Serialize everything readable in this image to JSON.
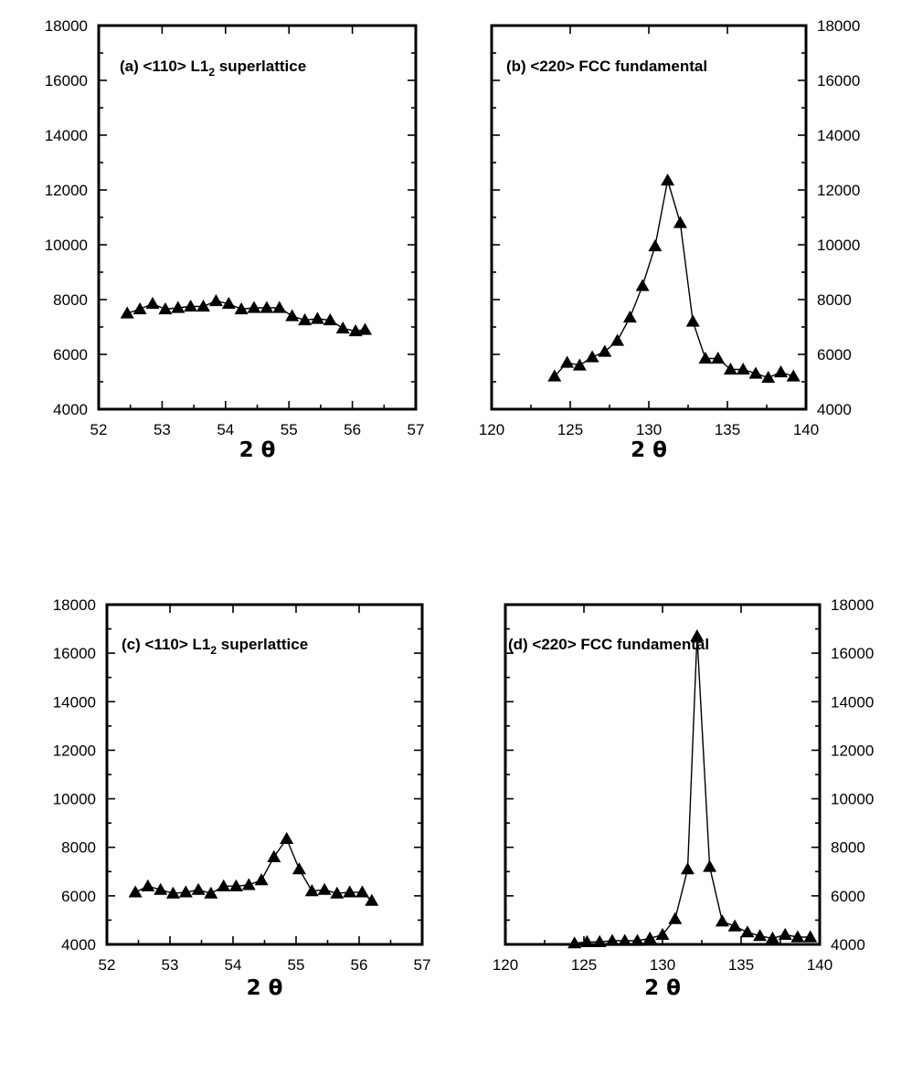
{
  "chart_data": [
    {
      "type": "line",
      "title": "(a) <110> L1",
      "title_subscript": "2",
      "title_suffix": " superlattice",
      "xlabel": "2 θ",
      "ylabel": "",
      "xlim": [
        52,
        57
      ],
      "ylim": [
        4000,
        18000
      ],
      "x_ticks": [
        52,
        53,
        54,
        55,
        56,
        57
      ],
      "y_ticks": [
        4000,
        6000,
        8000,
        10000,
        12000,
        14000,
        16000,
        18000
      ],
      "y_axis_side": "left",
      "marker": "triangle",
      "grid": false,
      "x": [
        52.45,
        52.65,
        52.85,
        53.05,
        53.25,
        53.45,
        53.65,
        53.85,
        54.05,
        54.25,
        54.45,
        54.65,
        54.85,
        55.05,
        55.25,
        55.45,
        55.65,
        55.85,
        56.05,
        56.2
      ],
      "values": [
        7500,
        7650,
        7850,
        7650,
        7700,
        7750,
        7750,
        7950,
        7850,
        7650,
        7700,
        7700,
        7700,
        7400,
        7250,
        7300,
        7250,
        6950,
        6850,
        6900
      ]
    },
    {
      "type": "line",
      "title": "(b) <220> FCC fundamental",
      "xlabel": "2 θ",
      "ylabel": "",
      "xlim": [
        120,
        140
      ],
      "ylim": [
        4000,
        18000
      ],
      "x_ticks": [
        120,
        125,
        130,
        135,
        140
      ],
      "y_ticks": [
        4000,
        6000,
        8000,
        10000,
        12000,
        14000,
        16000,
        18000
      ],
      "y_axis_side": "right",
      "marker": "triangle",
      "grid": false,
      "x": [
        124.0,
        124.8,
        125.6,
        126.4,
        127.2,
        128.0,
        128.8,
        129.6,
        130.4,
        131.2,
        132.0,
        132.8,
        133.6,
        134.4,
        135.2,
        136.0,
        136.8,
        137.6,
        138.4,
        139.2
      ],
      "values": [
        5200,
        5700,
        5600,
        5900,
        6100,
        6500,
        7350,
        8500,
        9950,
        12350,
        10800,
        7200,
        5850,
        5850,
        5450,
        5450,
        5300,
        5150,
        5350,
        5200
      ]
    },
    {
      "type": "line",
      "title": "(c) <110> L1",
      "title_subscript": "2",
      "title_suffix": " superlattice",
      "xlabel": "2 θ",
      "ylabel": "",
      "xlim": [
        52,
        57
      ],
      "ylim": [
        4000,
        18000
      ],
      "x_ticks": [
        52,
        53,
        54,
        55,
        56,
        57
      ],
      "y_ticks": [
        4000,
        6000,
        8000,
        10000,
        12000,
        14000,
        16000,
        18000
      ],
      "y_axis_side": "left",
      "marker": "triangle",
      "grid": false,
      "x": [
        52.45,
        52.65,
        52.85,
        53.05,
        53.25,
        53.45,
        53.65,
        53.85,
        54.05,
        54.25,
        54.45,
        54.65,
        54.85,
        55.05,
        55.25,
        55.45,
        55.65,
        55.85,
        56.05,
        56.2
      ],
      "values": [
        6150,
        6400,
        6250,
        6100,
        6150,
        6250,
        6100,
        6400,
        6400,
        6450,
        6650,
        7600,
        8350,
        7100,
        6200,
        6250,
        6100,
        6150,
        6150,
        5800
      ]
    },
    {
      "type": "line",
      "title": "(d) <220> FCC fundamental",
      "xlabel": "2 θ",
      "ylabel": "",
      "xlim": [
        120,
        140
      ],
      "ylim": [
        4000,
        18000
      ],
      "x_ticks": [
        120,
        125,
        130,
        135,
        140
      ],
      "y_ticks": [
        4000,
        6000,
        8000,
        10000,
        12000,
        14000,
        16000,
        18000
      ],
      "y_axis_side": "right",
      "marker": "triangle",
      "grid": false,
      "x": [
        124.4,
        125.2,
        126.0,
        126.8,
        127.6,
        128.4,
        129.2,
        130.0,
        130.8,
        131.6,
        132.2,
        133.0,
        133.8,
        134.6,
        135.4,
        136.2,
        137.0,
        137.8,
        138.6,
        139.4
      ],
      "values": [
        4050,
        4100,
        4100,
        4150,
        4150,
        4150,
        4250,
        4400,
        5050,
        7100,
        16700,
        7200,
        4950,
        4750,
        4500,
        4350,
        4250,
        4400,
        4300,
        4300
      ]
    }
  ]
}
